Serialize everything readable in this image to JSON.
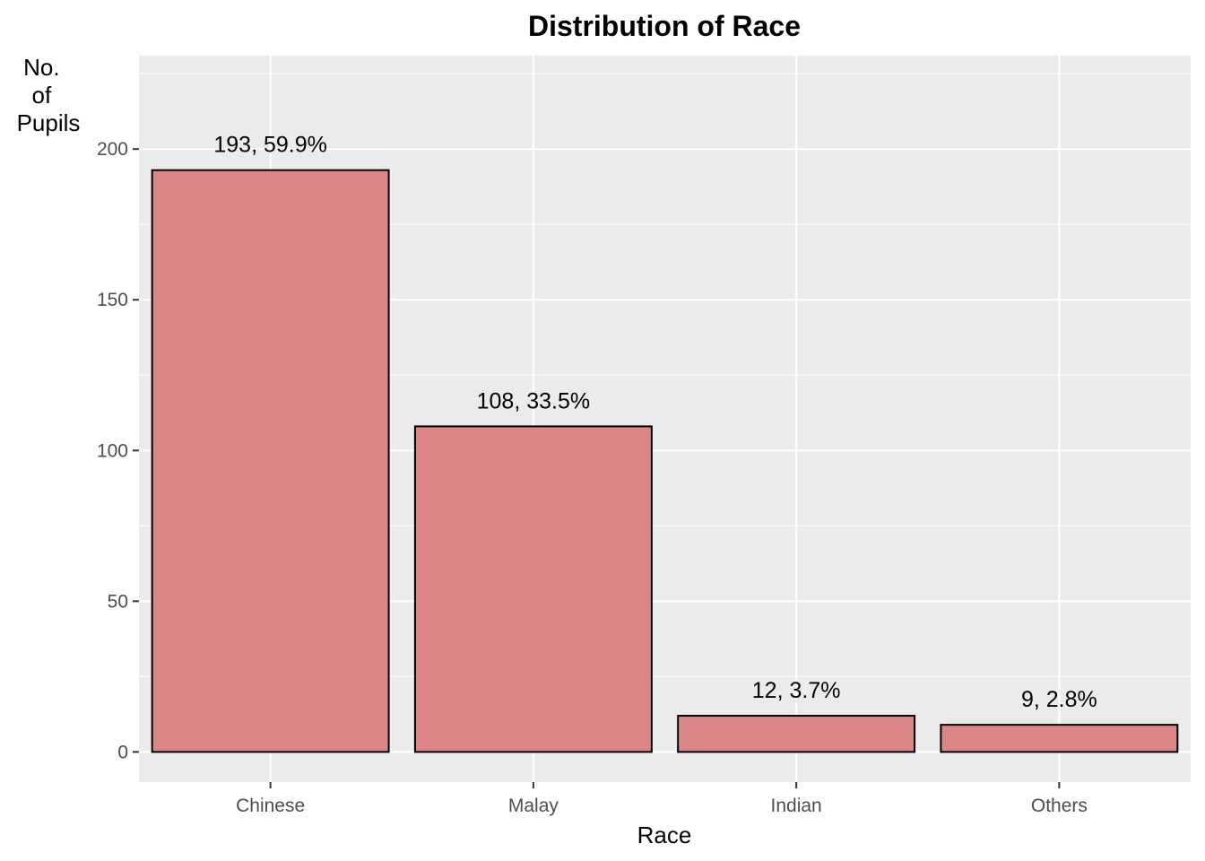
{
  "chart_data": {
    "type": "bar",
    "title": "Distribution of Race",
    "xlabel": "Race",
    "ylabel": [
      "No.",
      "of",
      "Pupils"
    ],
    "categories": [
      "Chinese",
      "Malay",
      "Indian",
      "Others"
    ],
    "values": [
      193,
      108,
      12,
      9
    ],
    "data_labels": [
      "193, 59.9%",
      "108, 33.5%",
      "12, 3.7%",
      "9, 2.8%"
    ],
    "ylim": [
      -10,
      231
    ],
    "yticks": [
      0,
      50,
      100,
      150,
      200
    ],
    "ytick_labels": [
      "0",
      "50",
      "100",
      "150",
      "200"
    ],
    "grid": true,
    "legend": "none",
    "colors": {
      "bar_fill": "#DB8787",
      "bar_stroke": "#000000",
      "panel_background": "#EBEBEB",
      "grid": "#FFFFFF"
    }
  }
}
